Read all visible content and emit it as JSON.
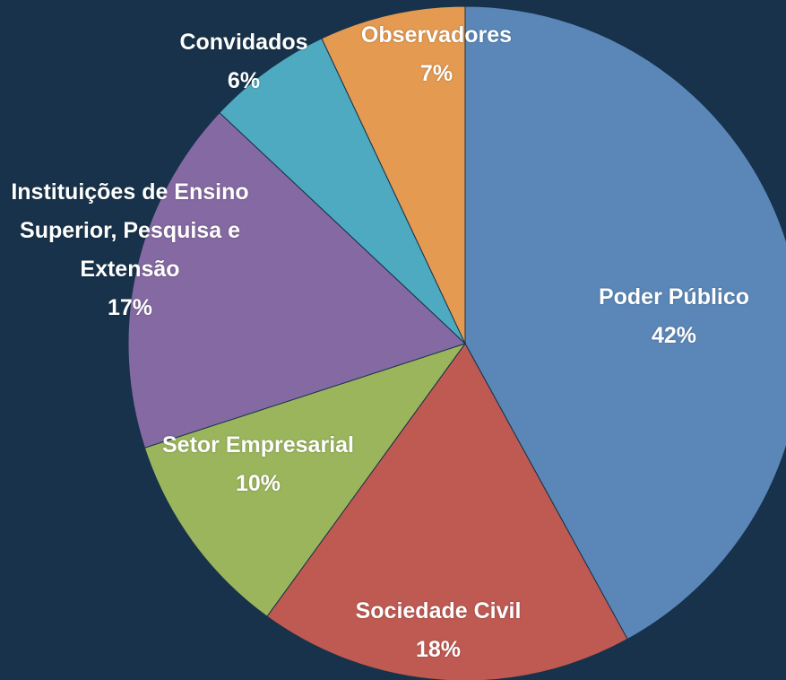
{
  "chart_data": {
    "type": "pie",
    "categories": [
      "Poder Público",
      "Sociedade Civil",
      "Setor Empresarial",
      "Instituições de Ensino Superior, Pesquisa e Extensão",
      "Convidados",
      "Observadores"
    ],
    "values": [
      42,
      18,
      10,
      17,
      6,
      7
    ],
    "value_labels": [
      "42%",
      "18%",
      "10%",
      "17%",
      "6%",
      "7%"
    ],
    "colors": [
      "#5a87b8",
      "#bf5a52",
      "#9bb55c",
      "#8569a2",
      "#4eaac0",
      "#e49a50"
    ]
  }
}
